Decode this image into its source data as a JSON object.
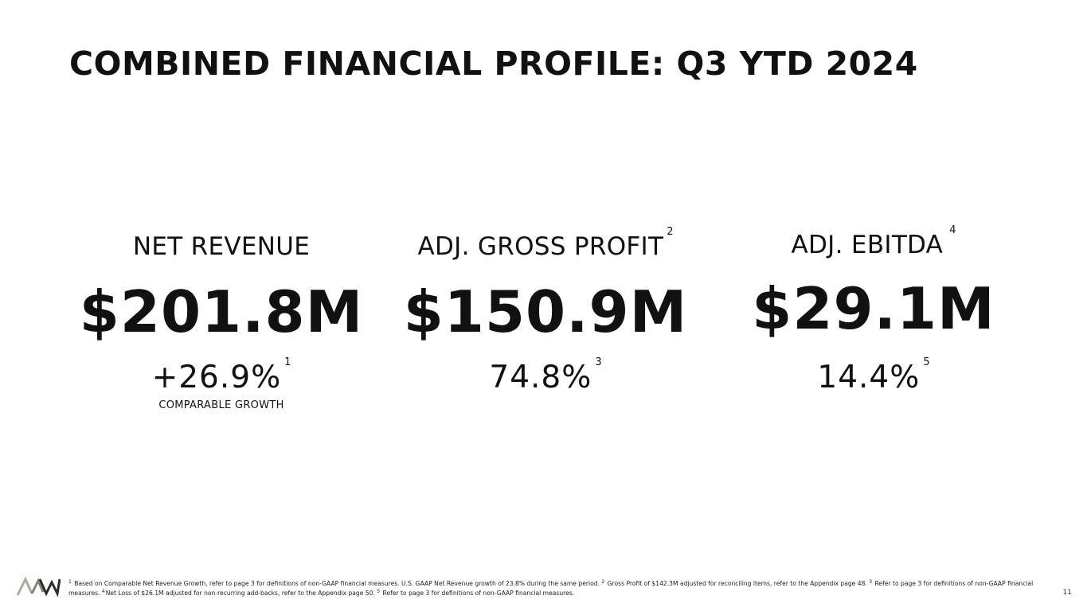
{
  "slide": {
    "title": "COMBINED FINANCIAL PROFILE: Q3 YTD 2024",
    "page_number": "11"
  },
  "metrics": [
    {
      "label": "NET REVENUE",
      "label_sup": "",
      "value": "$201.8M",
      "sub": "+26.9%",
      "sub_sup": "1",
      "note": "COMPARABLE GROWTH"
    },
    {
      "label": "ADJ. GROSS PROFIT",
      "label_sup": "2",
      "value": "$150.9M",
      "sub": "74.8%",
      "sub_sup": "3",
      "note": ""
    },
    {
      "label": "ADJ. EBITDA",
      "label_sup": "4",
      "value": "$29.1M",
      "sub": "14.4%",
      "sub_sup": "5",
      "note": ""
    }
  ],
  "footnote": {
    "n1": "1",
    "t1": " Based on Comparable Net Revenue Growth, refer to page 3 for definitions of non-GAAP financial measures. U.S. GAAP Net Revenue growth of 23.8% during the same period. ",
    "n2": "2",
    "t2": " Gross Profit of $142.3M adjusted for reconciling items, refer to the Appendix page 48. ",
    "n3": "3",
    "t3": " Refer to page 3 for definitions of non-GAAP financial measures. ",
    "n4": "4",
    "t4": "Net Loss of $26.1M adjusted for non-recurring add-backs, refer to the Appendix page 50. ",
    "n5": "5",
    "t5": " Refer to page 3 for definitions of non-GAAP financial measures."
  },
  "logo": {
    "icon": "company-logo-icon",
    "colors": {
      "left_stroke": "#b5a89a",
      "right_stroke": "#2b2b2b"
    }
  }
}
